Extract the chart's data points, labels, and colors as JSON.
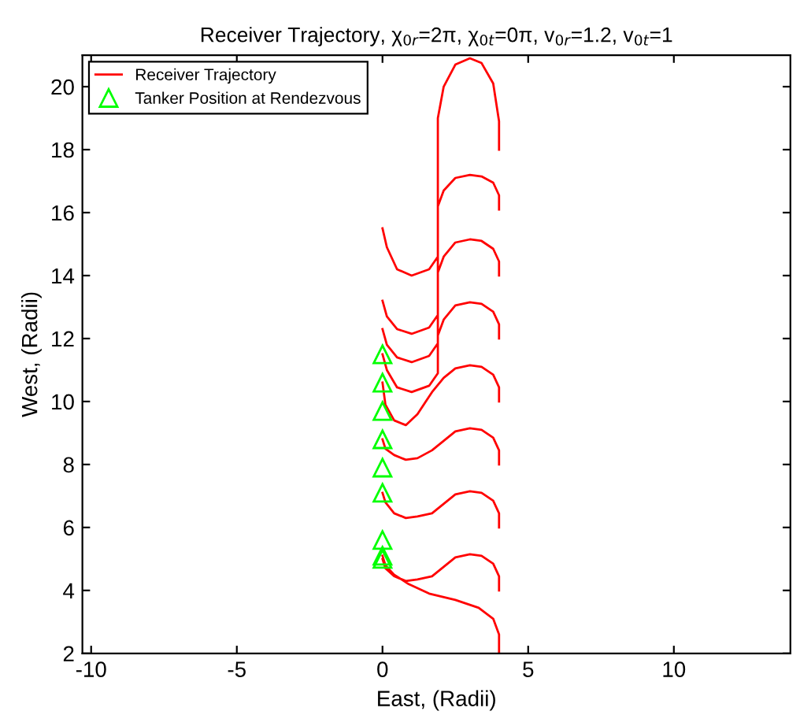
{
  "chart_data": {
    "type": "line",
    "title": "Receiver Trajectory, χ$_{0r}$=2π, χ$_{0t}$=0π, v$_{0r}$=1.2, v$_{0t}$=1",
    "xlabel": "East, (Radii)",
    "ylabel": "West, (Radii)",
    "xlim": [
      -10.3,
      14
    ],
    "ylim": [
      2,
      21
    ],
    "xticks": [
      -10,
      -5,
      0,
      5,
      10
    ],
    "yticks": [
      2,
      4,
      6,
      8,
      10,
      12,
      14,
      16,
      18,
      20
    ],
    "grid": false,
    "legend": "top left",
    "series": [
      {
        "name": "Receiver Trajectory",
        "color": "#ff0000",
        "marker": "none",
        "line_style": "solid",
        "x": [
          4,
          4,
          3.8,
          3.3,
          2.5,
          1.6,
          0.9,
          0.4,
          0.1,
          0,
          null,
          4,
          4,
          3.8,
          3.4,
          3.0,
          2.5,
          2.1,
          1.7,
          1.2,
          0.8,
          0.4,
          0.1,
          0,
          null,
          4,
          4,
          3.8,
          3.4,
          3.0,
          2.5,
          2.1,
          1.7,
          1.2,
          0.8,
          0.4,
          0.1,
          0,
          null,
          4,
          4,
          3.8,
          3.4,
          3.0,
          2.5,
          2.1,
          1.7,
          1.2,
          0.8,
          0.4,
          0.1,
          0,
          null,
          4,
          4,
          3.8,
          3.4,
          3.0,
          2.5,
          2.1,
          1.7,
          1.2,
          0.8,
          0.4,
          0.1,
          0,
          null,
          4,
          4,
          3.8,
          3.4,
          3.0,
          2.5,
          2.1,
          1.9,
          1.9,
          1.6,
          1.0,
          0.5,
          0.15,
          0,
          null,
          4,
          4,
          3.8,
          3.4,
          3.0,
          2.5,
          2.1,
          1.9,
          1.9,
          1.6,
          1.0,
          0.5,
          0.15,
          0,
          null,
          4,
          4,
          3.8,
          3.4,
          3.0,
          2.5,
          2.1,
          1.9,
          1.9,
          1.6,
          1.0,
          0.5,
          0.15,
          0,
          null,
          4,
          4,
          3.8,
          3.4,
          3.0,
          2.5,
          2.1,
          1.9,
          1.9,
          1.6,
          1.0,
          0.5,
          0.15,
          0
        ],
        "values": [
          2,
          2.6,
          3.1,
          3.45,
          3.7,
          3.9,
          4.2,
          4.5,
          4.8,
          5.1,
          null,
          4,
          4.45,
          4.85,
          5.1,
          5.15,
          5.05,
          4.75,
          4.45,
          4.35,
          4.3,
          4.45,
          4.7,
          5.0,
          null,
          6,
          6.45,
          6.85,
          7.1,
          7.15,
          7.05,
          6.75,
          6.45,
          6.35,
          6.3,
          6.45,
          6.8,
          7.1,
          null,
          8,
          8.45,
          8.85,
          9.1,
          9.15,
          9.05,
          8.75,
          8.45,
          8.2,
          8.15,
          8.3,
          8.5,
          8.8,
          null,
          10,
          10.45,
          10.85,
          11.1,
          11.15,
          11.05,
          10.75,
          10.3,
          9.6,
          9.25,
          9.4,
          9.9,
          10.6,
          null,
          12,
          12.45,
          12.85,
          13.1,
          13.15,
          13.05,
          12.6,
          12.1,
          10.9,
          10.5,
          10.3,
          10.45,
          11.0,
          11.5,
          null,
          14,
          14.45,
          14.85,
          15.1,
          15.15,
          15.05,
          14.6,
          14.1,
          11.85,
          11.45,
          11.25,
          11.4,
          11.8,
          12.3,
          null,
          16.1,
          16.55,
          16.95,
          17.15,
          17.2,
          17.1,
          16.7,
          16.2,
          12.75,
          12.35,
          12.15,
          12.3,
          12.7,
          13.2,
          null,
          18,
          18.9,
          20.1,
          20.75,
          20.9,
          20.7,
          20.0,
          19.0,
          14.6,
          14.2,
          14.0,
          14.2,
          14.9,
          15.5
        ]
      },
      {
        "name": "Tanker Position at Rendezvous",
        "type": "scatter",
        "color": "#00ff00",
        "marker": "triangle",
        "x": [
          0,
          0,
          0,
          0,
          0,
          0,
          0,
          0,
          0
        ],
        "values": [
          11.5,
          10.6,
          9.7,
          8.8,
          7.9,
          7.1,
          5.6,
          5.1,
          5.0
        ]
      }
    ]
  }
}
